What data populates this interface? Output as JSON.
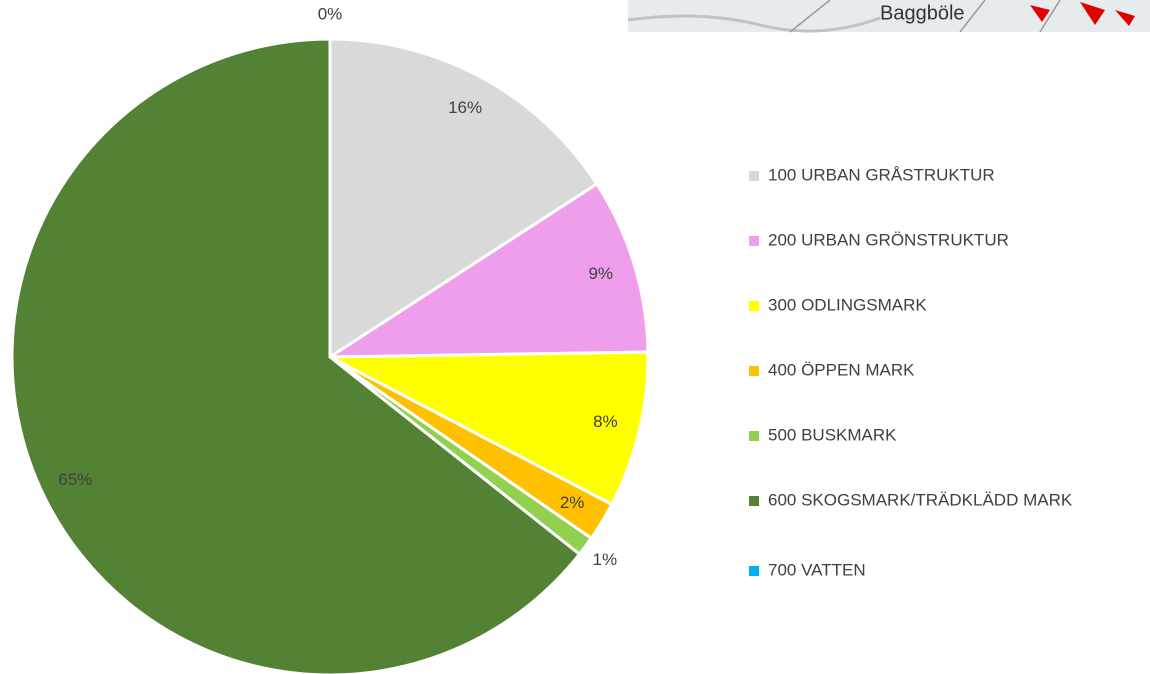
{
  "map_label": "Baggböle",
  "chart_data": {
    "type": "pie",
    "categories": [
      "100 URBAN GRÅSTRUKTUR",
      "200 URBAN GRÖNSTRUKTUR",
      "300 ODLINGSMARK",
      "400 ÖPPEN MARK",
      "500 BUSKMARK",
      "600 SKOGSMARK/TRÄDKLÄDD MARK",
      "700 VATTEN"
    ],
    "values": [
      16,
      9,
      8,
      2,
      1,
      65,
      0
    ],
    "value_labels": [
      "16%",
      "9%",
      "8%",
      "2%",
      "1%",
      "65%",
      "0%"
    ],
    "colors": [
      "#d9d9d9",
      "#ee9eea",
      "#ffff00",
      "#ffc000",
      "#92d050",
      "#548235",
      "#00b0f0"
    ],
    "legend": "right"
  }
}
